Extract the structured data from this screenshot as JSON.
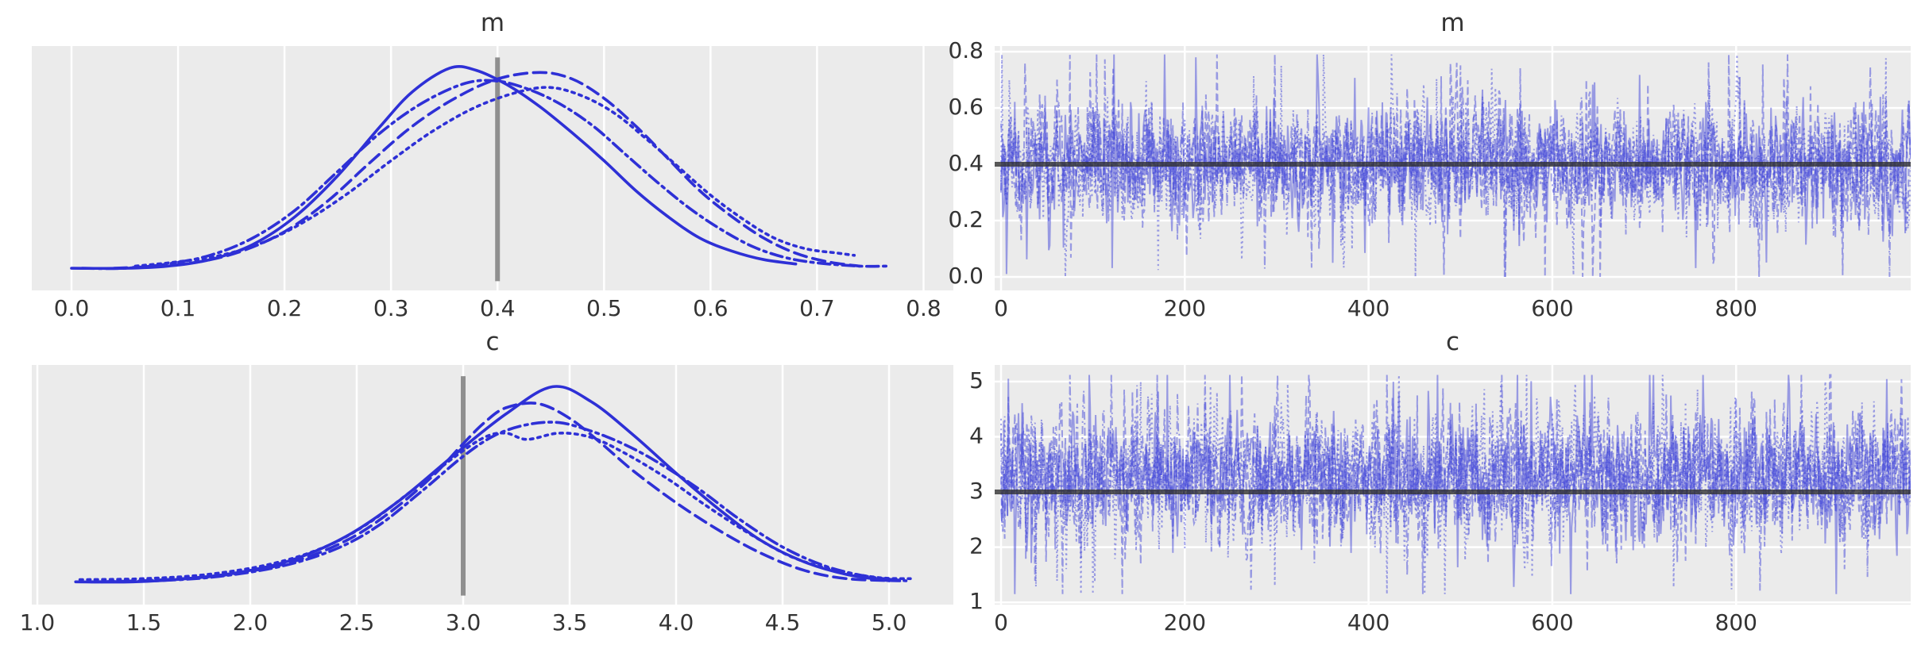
{
  "figure": {
    "kind": "mcmc-trace-figure",
    "rows": [
      "m",
      "c"
    ],
    "columns": [
      "posterior-density",
      "trace"
    ]
  },
  "style": {
    "axes_background": "#ebebeb",
    "grid_color": "#ffffff",
    "kde_line_color": "#2e30d6",
    "trace_line_color": "#4447d9",
    "trace_line_opacity": 0.5,
    "tick_label_color": "#333333",
    "title_color": "#333333",
    "reference_vline_color": "#8f8f8f",
    "reference_hline_color": "#2f2f2f"
  },
  "chart_data": [
    {
      "id": "kde-m",
      "type": "area",
      "subtype": "kde-density",
      "title": "m",
      "xlabel": "",
      "ylabel": "",
      "xlim": [
        -0.0373,
        0.828
      ],
      "ylim": [
        -0.083,
        1.053
      ],
      "grid": "vertical",
      "legend_position": "none",
      "xticks": {
        "values": [
          0.0,
          0.1,
          0.2,
          0.3,
          0.4,
          0.5,
          0.6,
          0.7,
          0.8
        ],
        "labels": [
          "0.0",
          "0.1",
          "0.2",
          "0.3",
          "0.4",
          "0.5",
          "0.6",
          "0.7",
          "0.8"
        ]
      },
      "yticks": {
        "values": [],
        "labels": []
      },
      "reference_line": {
        "orientation": "vertical",
        "value": 0.4,
        "span": [
          -0.04,
          1.0
        ]
      },
      "series": [
        {
          "name": "chain-0",
          "linestyle": "solid",
          "points": [
            [
              0.0,
              0.02
            ],
            [
              0.05,
              0.02
            ],
            [
              0.09,
              0.03
            ],
            [
              0.13,
              0.06
            ],
            [
              0.17,
              0.13
            ],
            [
              0.21,
              0.26
            ],
            [
              0.25,
              0.45
            ],
            [
              0.29,
              0.68
            ],
            [
              0.32,
              0.84
            ],
            [
              0.355,
              0.95
            ],
            [
              0.38,
              0.94
            ],
            [
              0.41,
              0.87
            ],
            [
              0.44,
              0.77
            ],
            [
              0.47,
              0.65
            ],
            [
              0.5,
              0.52
            ],
            [
              0.53,
              0.38
            ],
            [
              0.56,
              0.26
            ],
            [
              0.59,
              0.16
            ],
            [
              0.62,
              0.1
            ],
            [
              0.65,
              0.06
            ],
            [
              0.68,
              0.04
            ]
          ]
        },
        {
          "name": "chain-1",
          "linestyle": "dashed",
          "points": [
            [
              0.04,
              0.02
            ],
            [
              0.08,
              0.03
            ],
            [
              0.12,
              0.05
            ],
            [
              0.16,
              0.1
            ],
            [
              0.2,
              0.19
            ],
            [
              0.24,
              0.33
            ],
            [
              0.28,
              0.51
            ],
            [
              0.32,
              0.68
            ],
            [
              0.36,
              0.81
            ],
            [
              0.4,
              0.9
            ],
            [
              0.44,
              0.93
            ],
            [
              0.47,
              0.9
            ],
            [
              0.5,
              0.81
            ],
            [
              0.53,
              0.68
            ],
            [
              0.56,
              0.53
            ],
            [
              0.59,
              0.38
            ],
            [
              0.62,
              0.26
            ],
            [
              0.65,
              0.16
            ],
            [
              0.68,
              0.09
            ],
            [
              0.71,
              0.05
            ],
            [
              0.74,
              0.03
            ]
          ]
        },
        {
          "name": "chain-2",
          "linestyle": "dotted",
          "points": [
            [
              0.06,
              0.03
            ],
            [
              0.1,
              0.05
            ],
            [
              0.14,
              0.08
            ],
            [
              0.18,
              0.14
            ],
            [
              0.22,
              0.24
            ],
            [
              0.26,
              0.37
            ],
            [
              0.3,
              0.52
            ],
            [
              0.34,
              0.66
            ],
            [
              0.38,
              0.77
            ],
            [
              0.42,
              0.84
            ],
            [
              0.45,
              0.86
            ],
            [
              0.48,
              0.82
            ],
            [
              0.51,
              0.74
            ],
            [
              0.54,
              0.62
            ],
            [
              0.57,
              0.49
            ],
            [
              0.6,
              0.36
            ],
            [
              0.63,
              0.25
            ],
            [
              0.66,
              0.16
            ],
            [
              0.69,
              0.11
            ],
            [
              0.72,
              0.09
            ],
            [
              0.735,
              0.08
            ]
          ]
        },
        {
          "name": "chain-3",
          "linestyle": "dashdot",
          "points": [
            [
              0.01,
              0.02
            ],
            [
              0.05,
              0.02
            ],
            [
              0.09,
              0.04
            ],
            [
              0.13,
              0.08
            ],
            [
              0.17,
              0.16
            ],
            [
              0.21,
              0.29
            ],
            [
              0.25,
              0.47
            ],
            [
              0.29,
              0.65
            ],
            [
              0.33,
              0.79
            ],
            [
              0.37,
              0.88
            ],
            [
              0.4,
              0.89
            ],
            [
              0.43,
              0.85
            ],
            [
              0.46,
              0.78
            ],
            [
              0.49,
              0.68
            ],
            [
              0.52,
              0.55
            ],
            [
              0.55,
              0.42
            ],
            [
              0.58,
              0.3
            ],
            [
              0.61,
              0.2
            ],
            [
              0.64,
              0.12
            ],
            [
              0.67,
              0.07
            ],
            [
              0.7,
              0.045
            ],
            [
              0.74,
              0.03
            ],
            [
              0.765,
              0.03
            ]
          ]
        }
      ]
    },
    {
      "id": "trace-m",
      "type": "line",
      "subtype": "mcmc-trace",
      "title": "m",
      "xlabel": "",
      "ylabel": "",
      "xlim": [
        -6.9,
        990
      ],
      "ylim": [
        -0.048,
        0.82
      ],
      "grid": "both",
      "legend_position": "none",
      "n_draws": 1000,
      "xticks": {
        "values": [
          0,
          200,
          400,
          600,
          800
        ],
        "labels": [
          "0",
          "200",
          "400",
          "600",
          "800"
        ]
      },
      "yticks": {
        "values": [
          0.0,
          0.2,
          0.4,
          0.6,
          0.8
        ],
        "labels": [
          "0.0",
          "0.2",
          "0.4",
          "0.6",
          "0.8"
        ]
      },
      "reference_line": {
        "orientation": "horizontal",
        "value": 0.4
      },
      "series": [
        {
          "name": "chain-0",
          "linestyle": "solid",
          "mean": 0.4,
          "sd": 0.092,
          "seed": 11,
          "spikes": [
            [
              6,
              0.01
            ],
            [
              212,
              0.78
            ]
          ]
        },
        {
          "name": "chain-1",
          "linestyle": "dashed",
          "mean": 0.41,
          "sd": 0.1,
          "seed": 12,
          "spikes": []
        },
        {
          "name": "chain-2",
          "linestyle": "dotted",
          "mean": 0.4,
          "sd": 0.095,
          "seed": 13,
          "spikes": [
            [
              305,
              0.75
            ]
          ]
        },
        {
          "name": "chain-3",
          "linestyle": "dashdot",
          "mean": 0.405,
          "sd": 0.09,
          "seed": 14,
          "spikes": []
        }
      ],
      "value_range": [
        0.0,
        0.79
      ]
    },
    {
      "id": "kde-c",
      "type": "area",
      "subtype": "kde-density",
      "title": "c",
      "xlabel": "",
      "ylabel": "",
      "xlim": [
        0.974,
        5.302
      ],
      "ylim": [
        -0.083,
        1.053
      ],
      "grid": "vertical",
      "legend_position": "none",
      "xticks": {
        "values": [
          1.0,
          1.5,
          2.0,
          2.5,
          3.0,
          3.5,
          4.0,
          4.5,
          5.0
        ],
        "labels": [
          "1.0",
          "1.5",
          "2.0",
          "2.5",
          "3.0",
          "3.5",
          "4.0",
          "4.5",
          "5.0"
        ]
      },
      "yticks": {
        "values": [],
        "labels": []
      },
      "reference_line": {
        "orientation": "vertical",
        "value": 3.0,
        "span": [
          -0.04,
          1.0
        ]
      },
      "series": [
        {
          "name": "chain-0",
          "linestyle": "solid",
          "points": [
            [
              1.18,
              0.025
            ],
            [
              1.45,
              0.025
            ],
            [
              1.7,
              0.04
            ],
            [
              1.95,
              0.07
            ],
            [
              2.2,
              0.13
            ],
            [
              2.45,
              0.24
            ],
            [
              2.7,
              0.41
            ],
            [
              2.95,
              0.62
            ],
            [
              3.2,
              0.82
            ],
            [
              3.42,
              0.95
            ],
            [
              3.6,
              0.88
            ],
            [
              3.8,
              0.72
            ],
            [
              4.0,
              0.54
            ],
            [
              4.2,
              0.37
            ],
            [
              4.4,
              0.22
            ],
            [
              4.6,
              0.12
            ],
            [
              4.8,
              0.06
            ],
            [
              5.0,
              0.03
            ]
          ]
        },
        {
          "name": "chain-1",
          "linestyle": "dashed",
          "points": [
            [
              1.3,
              0.025
            ],
            [
              1.6,
              0.035
            ],
            [
              1.9,
              0.06
            ],
            [
              2.2,
              0.12
            ],
            [
              2.45,
              0.22
            ],
            [
              2.65,
              0.35
            ],
            [
              2.85,
              0.52
            ],
            [
              3.0,
              0.68
            ],
            [
              3.1,
              0.78
            ],
            [
              3.2,
              0.85
            ],
            [
              3.35,
              0.87
            ],
            [
              3.5,
              0.8
            ],
            [
              3.65,
              0.68
            ],
            [
              3.8,
              0.55
            ],
            [
              4.0,
              0.4
            ],
            [
              4.2,
              0.27
            ],
            [
              4.4,
              0.16
            ],
            [
              4.6,
              0.08
            ],
            [
              4.8,
              0.04
            ],
            [
              5.05,
              0.03
            ]
          ]
        },
        {
          "name": "chain-2",
          "linestyle": "dotted",
          "points": [
            [
              1.2,
              0.035
            ],
            [
              1.5,
              0.04
            ],
            [
              1.8,
              0.06
            ],
            [
              2.1,
              0.11
            ],
            [
              2.35,
              0.19
            ],
            [
              2.55,
              0.3
            ],
            [
              2.75,
              0.45
            ],
            [
              2.95,
              0.61
            ],
            [
              3.1,
              0.71
            ],
            [
              3.2,
              0.73
            ],
            [
              3.3,
              0.7
            ],
            [
              3.45,
              0.73
            ],
            [
              3.6,
              0.71
            ],
            [
              3.75,
              0.64
            ],
            [
              3.95,
              0.52
            ],
            [
              4.15,
              0.38
            ],
            [
              4.35,
              0.25
            ],
            [
              4.55,
              0.14
            ],
            [
              4.75,
              0.08
            ],
            [
              4.95,
              0.045
            ],
            [
              5.1,
              0.04
            ]
          ]
        },
        {
          "name": "chain-3",
          "linestyle": "dashdot",
          "points": [
            [
              1.25,
              0.025
            ],
            [
              1.55,
              0.03
            ],
            [
              1.85,
              0.05
            ],
            [
              2.15,
              0.1
            ],
            [
              2.4,
              0.18
            ],
            [
              2.6,
              0.29
            ],
            [
              2.8,
              0.45
            ],
            [
              3.0,
              0.62
            ],
            [
              3.15,
              0.72
            ],
            [
              3.3,
              0.77
            ],
            [
              3.45,
              0.78
            ],
            [
              3.6,
              0.74
            ],
            [
              3.75,
              0.68
            ],
            [
              3.9,
              0.6
            ],
            [
              4.1,
              0.47
            ],
            [
              4.3,
              0.32
            ],
            [
              4.5,
              0.19
            ],
            [
              4.7,
              0.1
            ],
            [
              4.9,
              0.05
            ],
            [
              5.08,
              0.03
            ]
          ]
        }
      ]
    },
    {
      "id": "trace-c",
      "type": "line",
      "subtype": "mcmc-trace",
      "title": "c",
      "xlabel": "",
      "ylabel": "",
      "xlim": [
        -6.9,
        990
      ],
      "ylim": [
        0.96,
        5.3
      ],
      "grid": "both",
      "legend_position": "none",
      "n_draws": 1000,
      "xticks": {
        "values": [
          0,
          200,
          400,
          600,
          800
        ],
        "labels": [
          "0",
          "200",
          "400",
          "600",
          "800"
        ]
      },
      "yticks": {
        "values": [
          1,
          2,
          3,
          4,
          5
        ],
        "labels": [
          "1",
          "2",
          "3",
          "4",
          "5"
        ]
      },
      "reference_line": {
        "orientation": "horizontal",
        "value": 3.0
      },
      "series": [
        {
          "name": "chain-0",
          "linestyle": "solid",
          "mean": 3.3,
          "sd": 0.52,
          "seed": 21,
          "spikes": [
            [
              8,
              5.05
            ]
          ]
        },
        {
          "name": "chain-1",
          "linestyle": "dashed",
          "mean": 3.22,
          "sd": 0.56,
          "seed": 22,
          "spikes": []
        },
        {
          "name": "chain-2",
          "linestyle": "dotted",
          "mean": 3.28,
          "sd": 0.55,
          "seed": 23,
          "spikes": [
            [
              298,
              1.3
            ]
          ]
        },
        {
          "name": "chain-3",
          "linestyle": "dashdot",
          "mean": 3.33,
          "sd": 0.53,
          "seed": 24,
          "spikes": []
        }
      ],
      "value_range": [
        1.15,
        5.12
      ]
    }
  ]
}
